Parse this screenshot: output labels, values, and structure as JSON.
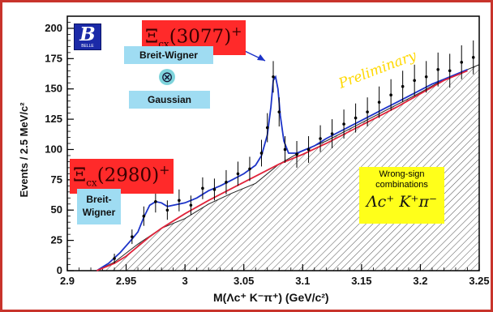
{
  "chart_data": {
    "type": "line",
    "xlabel": "M(Λc⁺ K⁻π⁺)  (GeV/c²)",
    "ylabel": "Events / 2.5 MeV/c²",
    "xlim": [
      2.9,
      3.25
    ],
    "ylim": [
      0,
      210
    ],
    "x_ticks": [
      "2.9",
      "2.95",
      "3",
      "3.05",
      "3.1",
      "3.15",
      "3.2",
      "3.25"
    ],
    "y_ticks": [
      "0",
      "25",
      "50",
      "75",
      "100",
      "125",
      "150",
      "175",
      "200"
    ],
    "series": [
      {
        "type": "fit-curve",
        "color": "#1c33c8",
        "x": [
          2.925,
          2.935,
          2.945,
          2.955,
          2.96,
          2.965,
          2.97,
          2.975,
          2.98,
          2.985,
          2.99,
          2.995,
          3.0,
          3.005,
          3.01,
          3.015,
          3.02,
          3.03,
          3.04,
          3.05,
          3.06,
          3.065,
          3.07,
          3.073,
          3.075,
          3.077,
          3.079,
          3.081,
          3.084,
          3.088,
          3.095,
          3.1,
          3.11,
          3.12,
          3.13,
          3.14,
          3.15,
          3.16,
          3.17,
          3.18,
          3.19,
          3.2,
          3.21,
          3.22,
          3.23,
          3.24
        ],
        "y": [
          0,
          6,
          15,
          26,
          32,
          44,
          54,
          57,
          56,
          53,
          54,
          55,
          56,
          58,
          60,
          63,
          66,
          70,
          75,
          80,
          87,
          95,
          112,
          135,
          157,
          160,
          150,
          128,
          107,
          97,
          97,
          99,
          103,
          109,
          114,
          119,
          124,
          129,
          134,
          139,
          144,
          149,
          154,
          158,
          162,
          166
        ]
      },
      {
        "type": "background-curve",
        "color": "#e0233a",
        "x": [
          2.925,
          2.94,
          2.95,
          2.96,
          2.97,
          2.98,
          2.99,
          3.0,
          3.02,
          3.04,
          3.06,
          3.08,
          3.1,
          3.12,
          3.14,
          3.16,
          3.18,
          3.2,
          3.22,
          3.24
        ],
        "y": [
          0,
          6,
          12,
          20,
          28,
          35,
          41,
          47,
          58,
          68,
          78,
          88,
          96,
          105,
          115,
          125,
          135,
          146,
          157,
          165
        ]
      },
      {
        "type": "data-points",
        "color": "#000000",
        "x": [
          2.94,
          2.955,
          2.965,
          2.975,
          2.985,
          2.995,
          3.005,
          3.015,
          3.025,
          3.035,
          3.045,
          3.055,
          3.065,
          3.07,
          3.075,
          3.08,
          3.085,
          3.095,
          3.105,
          3.115,
          3.125,
          3.135,
          3.145,
          3.155,
          3.165,
          3.175,
          3.185,
          3.195,
          3.205,
          3.215,
          3.225,
          3.235,
          3.245
        ],
        "y": [
          10,
          28,
          45,
          57,
          50,
          58,
          54,
          68,
          67,
          73,
          80,
          84,
          97,
          118,
          160,
          131,
          100,
          96,
          100,
          109,
          113,
          121,
          126,
          131,
          139,
          145,
          152,
          157,
          160,
          166,
          165,
          172,
          176
        ],
        "err": [
          4,
          6,
          8,
          9,
          8,
          9,
          8,
          9,
          9,
          10,
          10,
          10,
          11,
          12,
          13,
          12,
          11,
          11,
          11,
          11,
          12,
          12,
          12,
          12,
          13,
          13,
          13,
          13,
          13,
          14,
          14,
          14,
          14
        ]
      },
      {
        "type": "wrong-sign-histogram",
        "fill": "hatched",
        "x": [
          2.925,
          2.94,
          2.96,
          2.98,
          3.0,
          3.02,
          3.04,
          3.06,
          3.08,
          3.1,
          3.12,
          3.14,
          3.16,
          3.18,
          3.2,
          3.22,
          3.24,
          3.25
        ],
        "y": [
          0,
          7,
          22,
          35,
          43,
          55,
          64,
          72,
          88,
          99,
          107,
          117,
          127,
          137,
          147,
          158,
          166,
          170
        ]
      }
    ]
  },
  "annotations": {
    "peak_label_high": {
      "main": "Ξ",
      "sub": "cx",
      "paren": "(3077)",
      "sup": "+"
    },
    "peak_label_low": {
      "main": "Ξ",
      "sub": "cx",
      "paren": "(2980)",
      "sup": "+"
    },
    "breit_wigner_top": "Breit-Wigner",
    "convolution_symbol": "⊗",
    "gaussian": "Gaussian",
    "breit_wigner_left_1": "Breit-",
    "breit_wigner_left_2": "Wigner",
    "preliminary": "Preliminary",
    "wrong_sign_1": "Wrong-sign",
    "wrong_sign_2": "combinations",
    "wrong_sign_formula": "Λc⁺ K⁺π⁻",
    "logo_letter": "B",
    "logo_caption": "BELLE"
  },
  "colors": {
    "frame": "#c8342c",
    "fit": "#1c33c8",
    "background_fit": "#e0233a",
    "label_red": "#ff2a2a",
    "label_cyan": "#9fdcf2",
    "label_yellow": "#ffff1a",
    "preliminary": "#ffd800",
    "logo": "#1b2aa8"
  }
}
